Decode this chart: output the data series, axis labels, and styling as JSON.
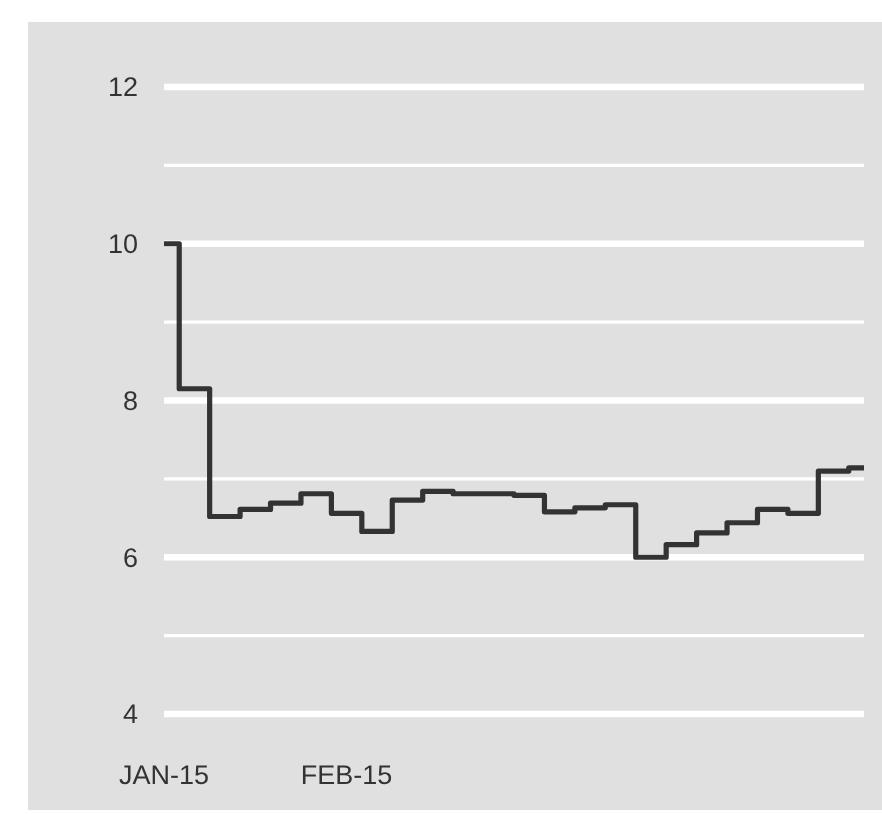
{
  "chart_data": {
    "type": "step",
    "categories": [
      "JAN-15",
      null,
      null,
      null,
      null,
      null,
      "FEB-15",
      null,
      null,
      null,
      null,
      null,
      null,
      null,
      null,
      null,
      null,
      null,
      null,
      null,
      null,
      null,
      null,
      null
    ],
    "series": [
      {
        "color": "#333333",
        "values": [
          10.0,
          8.15,
          6.52,
          6.61,
          6.69,
          6.81,
          6.56,
          6.33,
          6.73,
          6.84,
          6.81,
          6.81,
          6.79,
          6.58,
          6.63,
          6.67,
          6.0,
          6.16,
          6.31,
          6.44,
          6.61,
          6.56,
          7.1,
          7.14
        ]
      }
    ],
    "ylim": [
      4,
      12
    ],
    "yticks": [
      4,
      {
        "value": 5,
        "label": null
      },
      6,
      {
        "value": 7,
        "label": null
      },
      8,
      {
        "value": 9,
        "label": null
      },
      10,
      {
        "value": 11,
        "label": null
      },
      12
    ],
    "grid": "y",
    "line_style": "solid"
  }
}
